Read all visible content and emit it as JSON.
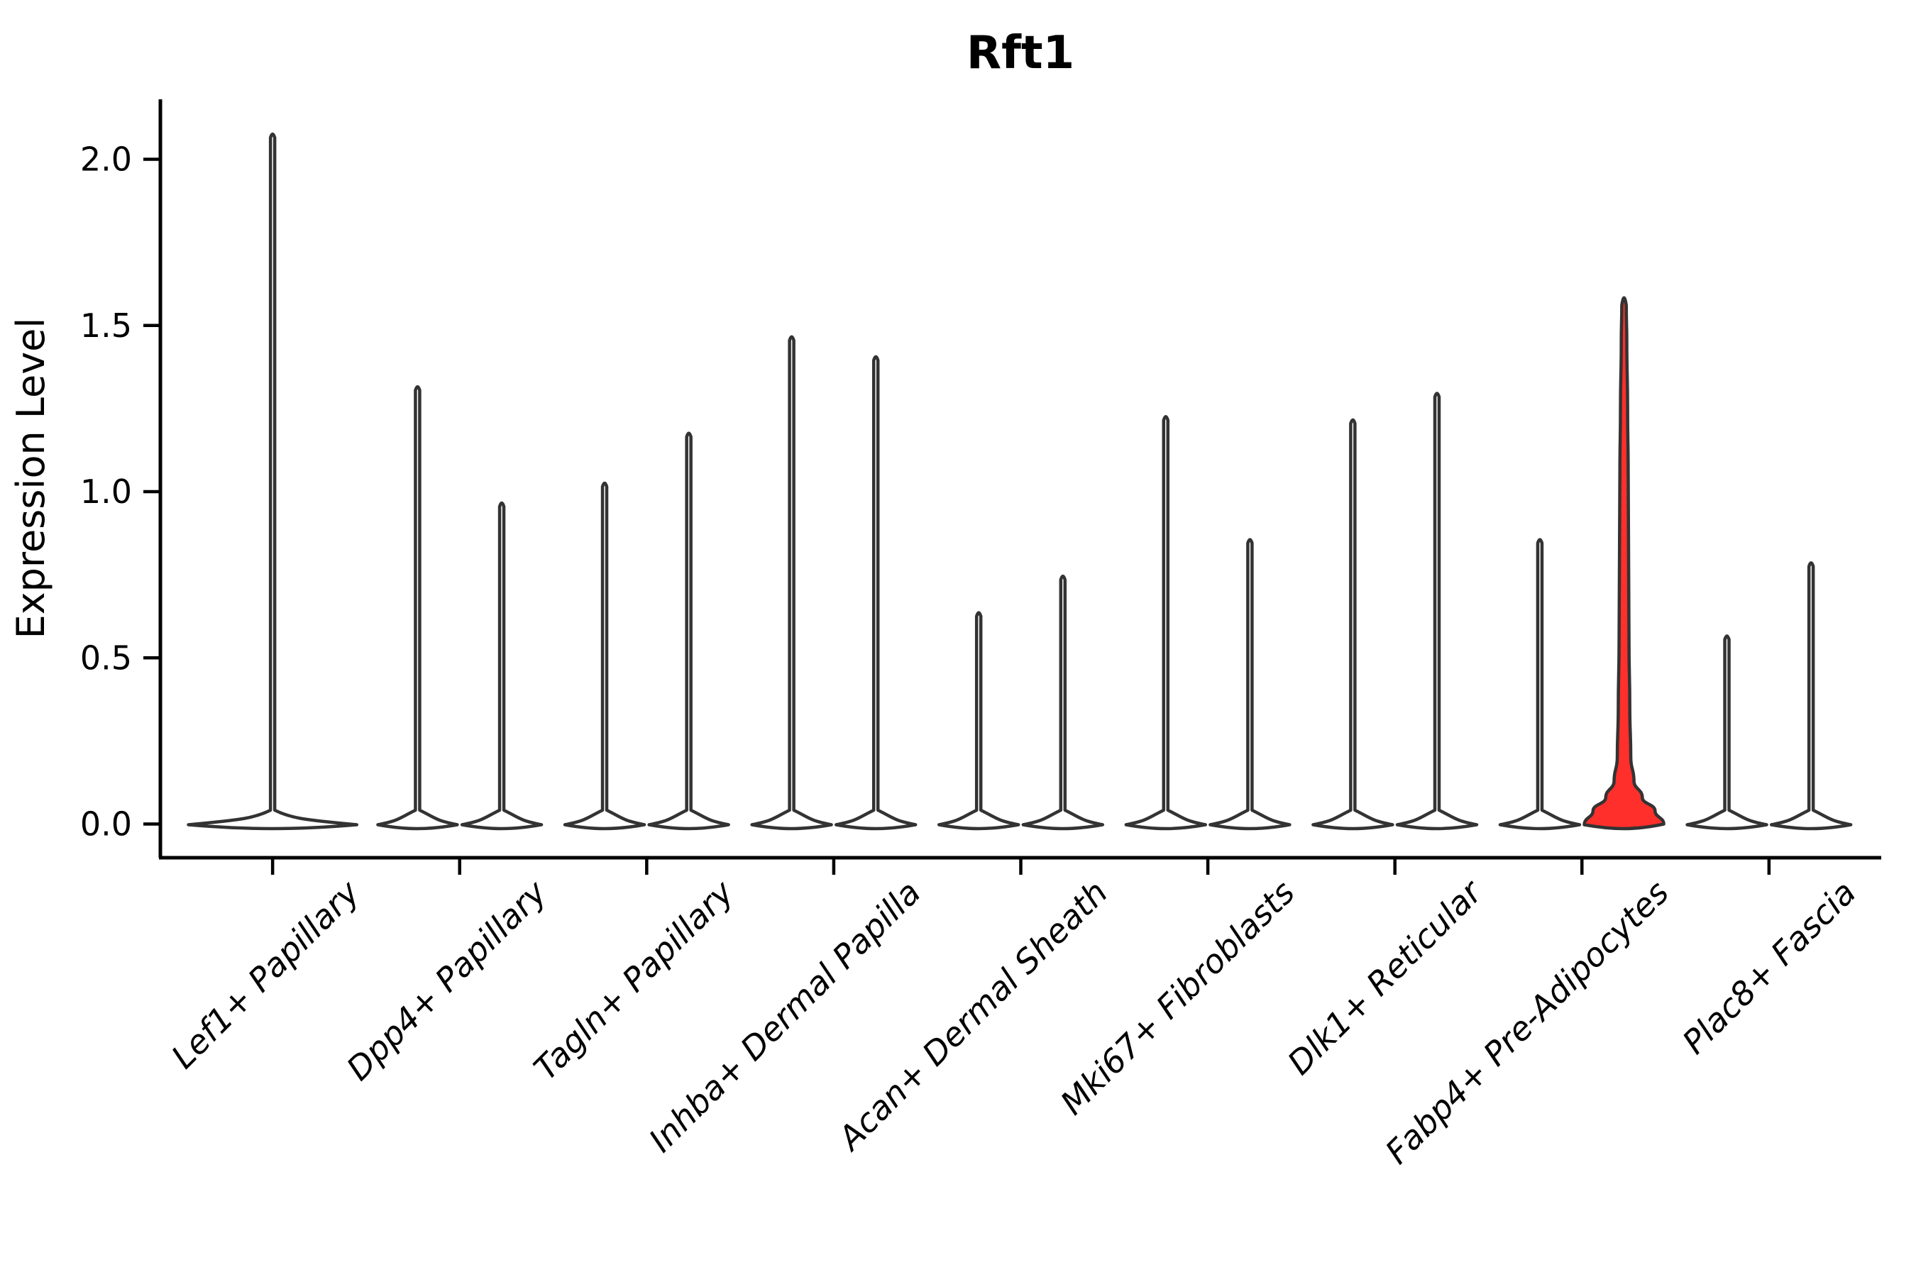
{
  "title": "Rft1",
  "chart_data": {
    "type": "violin",
    "title": "Rft1",
    "xlabel": "",
    "ylabel": "Expression Level",
    "y_ticks": [
      "0.0",
      "0.5",
      "1.0",
      "1.5",
      "2.0"
    ],
    "y_tick_values": [
      0.0,
      0.5,
      1.0,
      1.5,
      2.0
    ],
    "ylim": [
      -0.1,
      2.18
    ],
    "grid": "off",
    "legend": "none",
    "outline_color": "#333333",
    "default_fill": "#ffffff",
    "highlight_color": "#FF2F2B",
    "x_label_rotation_deg": 45,
    "categories": [
      {
        "label": "Lef1+ Papillary",
        "violins": [
          {
            "max": 2.08,
            "layout": "single"
          }
        ]
      },
      {
        "label": "Dpp4+ Papillary",
        "violins": [
          {
            "max": 1.32
          },
          {
            "max": 0.97
          }
        ]
      },
      {
        "label": "Tagln+ Papillary",
        "violins": [
          {
            "max": 1.03
          },
          {
            "max": 1.18
          }
        ]
      },
      {
        "label": "Inhba+ Dermal Papilla",
        "violins": [
          {
            "max": 1.47
          },
          {
            "max": 1.41
          }
        ]
      },
      {
        "label": "Acan+ Dermal Sheath",
        "violins": [
          {
            "max": 0.64
          },
          {
            "max": 0.75
          }
        ]
      },
      {
        "label": "Mki67+ Fibroblasts",
        "violins": [
          {
            "max": 1.23
          },
          {
            "max": 0.86
          }
        ]
      },
      {
        "label": "Dlk1+ Reticular",
        "violins": [
          {
            "max": 1.22
          },
          {
            "max": 1.3
          }
        ]
      },
      {
        "label": "Fabp4+ Pre-Adipocytes",
        "violins": [
          {
            "max": 0.86
          },
          {
            "max": 1.6,
            "highlight": true,
            "profile": [
              [
                0.0,
                1.0
              ],
              [
                0.04,
                0.78
              ],
              [
                0.08,
                0.46
              ],
              [
                0.13,
                0.25
              ],
              [
                0.2,
                0.17
              ],
              [
                0.35,
                0.145
              ],
              [
                0.55,
                0.125
              ],
              [
                0.8,
                0.115
              ],
              [
                1.05,
                0.105
              ],
              [
                1.25,
                0.09
              ],
              [
                1.45,
                0.07
              ],
              [
                1.56,
                0.057
              ]
            ]
          }
        ]
      },
      {
        "label": "Plac8+ Fascia",
        "violins": [
          {
            "max": 0.57
          },
          {
            "max": 0.79
          }
        ]
      }
    ]
  }
}
